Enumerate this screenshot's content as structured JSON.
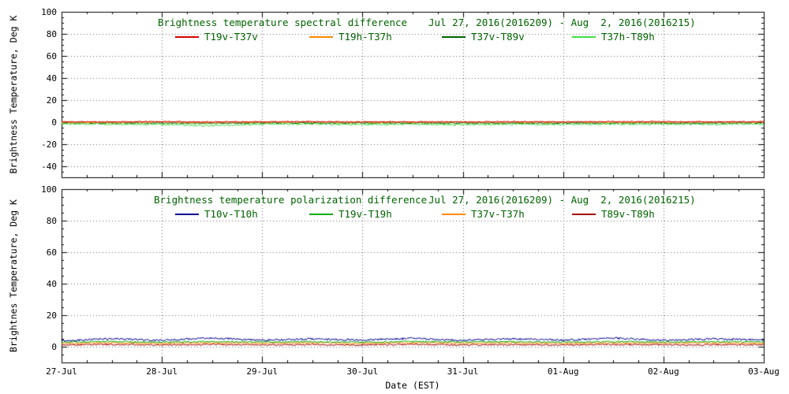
{
  "styles": {
    "background": "#ffffff",
    "title_color": "#006400",
    "axis_color": "#000000",
    "grid_color": "#000000"
  },
  "chart_data": [
    {
      "type": "line",
      "title": "Brightness temperature spectral difference",
      "date_range": "Jul 27, 2016(2016209) - Aug  2, 2016(2016215)",
      "ylabel": "Brightness Temperature, Deg K",
      "ylim": [
        -50,
        100
      ],
      "y_ticks": [
        -40,
        -20,
        0,
        20,
        40,
        60,
        80,
        100
      ],
      "x_days": 7,
      "x_ticks": [
        "27-Jul",
        "28-Jul",
        "29-Jul",
        "30-Jul",
        "31-Jul",
        "01-Aug",
        "02-Aug",
        "03-Aug"
      ],
      "show_x_labels": false,
      "grid": true,
      "legend_position": "top-inside",
      "series": [
        {
          "name": "T19v-T37v",
          "color": "#dd0000",
          "values": [
            0.4,
            0.3,
            0.5,
            0.2,
            0.4,
            0.5,
            0.3,
            0.4,
            0.2,
            0.5,
            0.3,
            0.4,
            0.5,
            0.3,
            0.4
          ],
          "noise": 0.5,
          "seed": 11
        },
        {
          "name": "T19h-T37h",
          "color": "#ff8800",
          "values": [
            0.0,
            -0.1,
            0.1,
            -0.2,
            0.0,
            0.1,
            -0.1,
            0.0,
            0.1,
            -0.1,
            0.0,
            0.1,
            -0.2,
            0.0,
            0.1
          ],
          "noise": 0.6,
          "seed": 22
        },
        {
          "name": "T37v-T89v",
          "color": "#006400",
          "values": [
            -0.7,
            -0.9,
            -0.8,
            -1.0,
            -0.8,
            -0.7,
            -0.9,
            -0.8,
            -1.0,
            -0.8,
            -0.9,
            -0.7,
            -0.9,
            -0.8,
            -0.7
          ],
          "noise": 0.7,
          "seed": 33
        },
        {
          "name": "T37h-T89h",
          "color": "#44dd44",
          "values": [
            -1.6,
            -1.9,
            -2.1,
            -3.2,
            -1.9,
            -1.7,
            -2.2,
            -1.8,
            -2.3,
            -1.8,
            -2.0,
            -1.9,
            -1.7,
            -2.1,
            -1.8
          ],
          "noise": 0.9,
          "seed": 44
        }
      ]
    },
    {
      "type": "line",
      "title": "Brightness temperature polarization difference",
      "date_range": "Jul 27, 2016(2016209) - Aug  2, 2016(2016215)",
      "ylabel": "Brightnes Temperature, Deg K",
      "xlabel": "Date (EST)",
      "ylim": [
        -10,
        100
      ],
      "y_ticks": [
        0,
        20,
        40,
        60,
        80,
        100
      ],
      "x_days": 7,
      "x_ticks": [
        "27-Jul",
        "28-Jul",
        "29-Jul",
        "30-Jul",
        "31-Jul",
        "01-Aug",
        "02-Aug",
        "03-Aug"
      ],
      "show_x_labels": true,
      "grid": true,
      "legend_position": "top-inside",
      "series": [
        {
          "name": "T10v-T10h",
          "color": "#000090",
          "values": [
            3.8,
            5.2,
            4.0,
            5.6,
            4.1,
            5.0,
            4.2,
            5.4,
            4.0,
            5.1,
            4.2,
            5.5,
            4.1,
            5.0,
            4.3
          ],
          "noise": 0.6,
          "seed": 55
        },
        {
          "name": "T19v-T19h",
          "color": "#00aa00",
          "values": [
            3.0,
            3.4,
            2.9,
            3.3,
            3.0,
            3.2,
            2.9,
            3.3,
            3.0,
            3.2,
            2.9,
            3.3,
            3.0,
            3.2,
            3.0
          ],
          "noise": 0.5,
          "seed": 66
        },
        {
          "name": "T37v-T37h",
          "color": "#ff8800",
          "values": [
            2.2,
            2.5,
            2.1,
            2.4,
            2.2,
            2.4,
            2.1,
            2.5,
            2.2,
            2.4,
            2.1,
            2.4,
            2.2,
            2.4,
            2.2
          ],
          "noise": 0.5,
          "seed": 77
        },
        {
          "name": "T89v-T89h",
          "color": "#a00000",
          "values": [
            1.2,
            1.4,
            1.1,
            1.4,
            1.2,
            1.3,
            1.1,
            1.4,
            1.2,
            1.3,
            1.1,
            1.4,
            1.2,
            1.3,
            1.2
          ],
          "noise": 0.5,
          "seed": 88
        }
      ]
    }
  ]
}
